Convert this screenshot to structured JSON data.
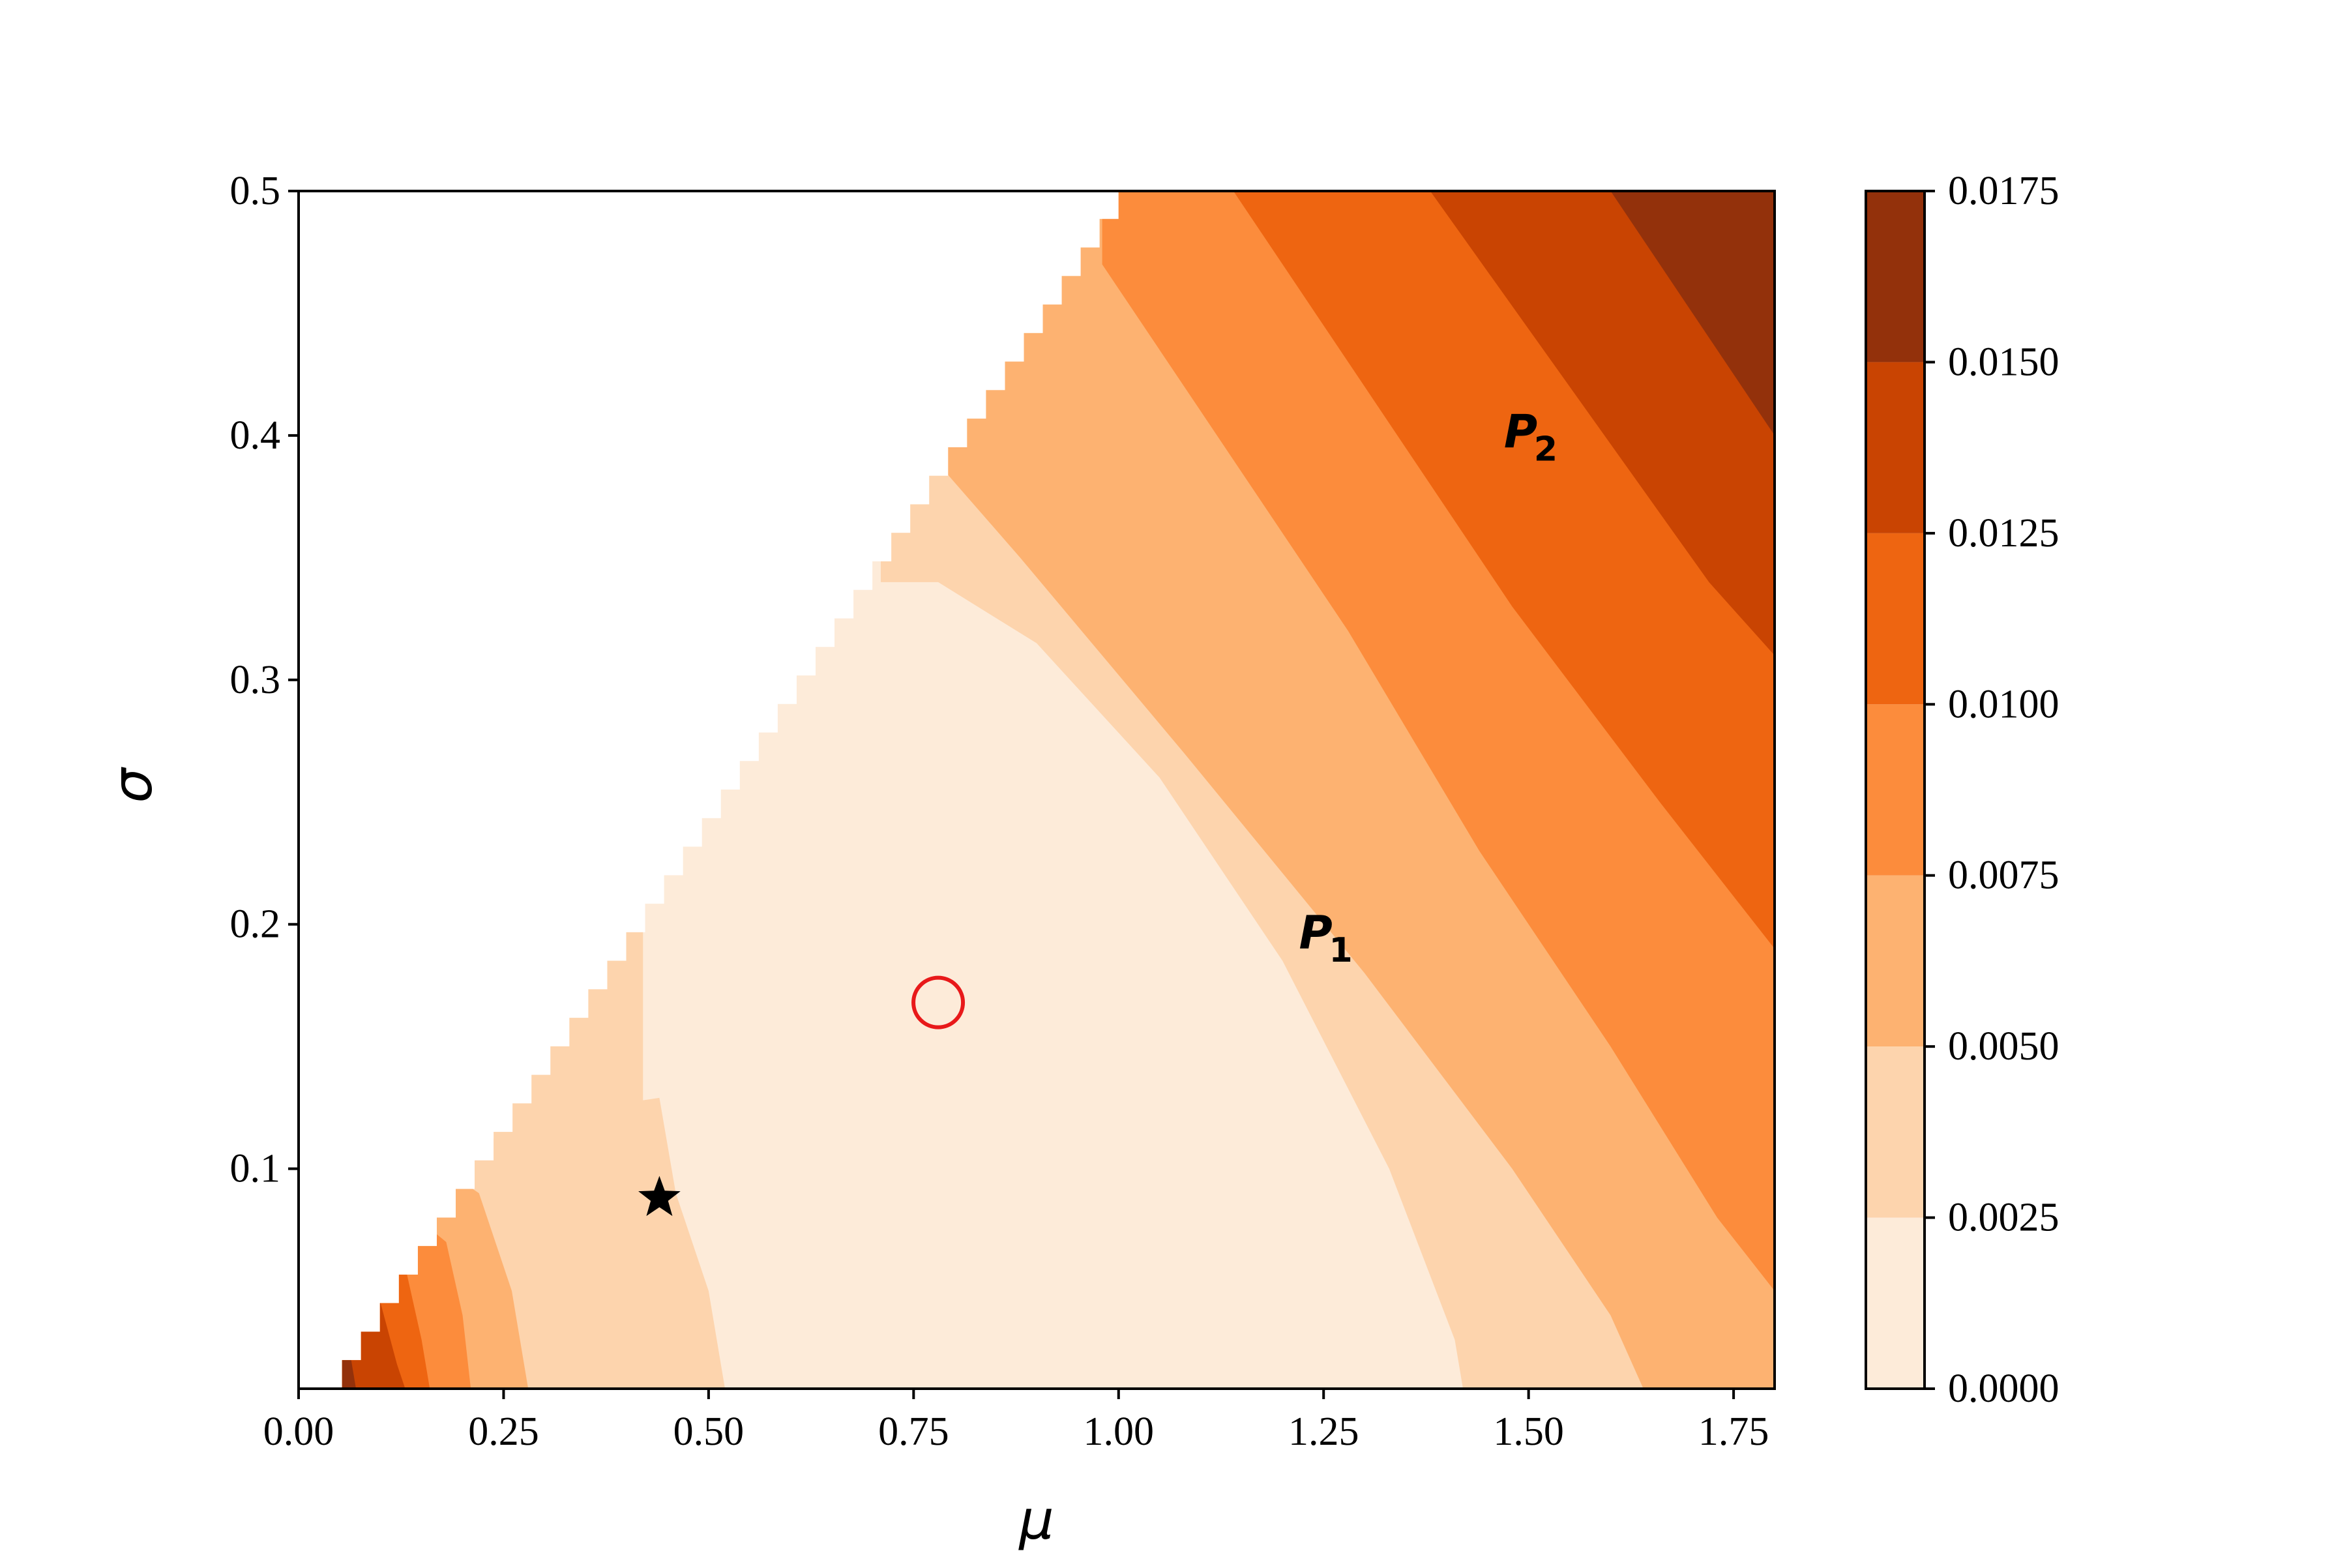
{
  "chart_data": {
    "type": "heatmap",
    "subtype": "filled-contour",
    "title": "",
    "xlabel": "μ",
    "ylabel": "σ",
    "xlim": [
      0.0,
      1.8
    ],
    "ylim": [
      0.01,
      0.5
    ],
    "x_ticks": [
      "0.00",
      "0.25",
      "0.50",
      "0.75",
      "1.00",
      "1.25",
      "1.50",
      "1.75"
    ],
    "x_tick_values": [
      0.0,
      0.25,
      0.5,
      0.75,
      1.0,
      1.25,
      1.5,
      1.75
    ],
    "y_ticks": [
      "0.1",
      "0.2",
      "0.3",
      "0.4",
      "0.5"
    ],
    "y_tick_values": [
      0.1,
      0.2,
      0.3,
      0.4,
      0.5
    ],
    "grid": false,
    "colorbar": {
      "position": "right",
      "levels": [
        0.0,
        0.0025,
        0.005,
        0.0075,
        0.01,
        0.0125,
        0.015,
        0.0175
      ],
      "tick_labels": [
        "0.0000",
        "0.0025",
        "0.0050",
        "0.0075",
        "0.0100",
        "0.0125",
        "0.0150",
        "0.0175"
      ],
      "colors": [
        "#fdebd9",
        "#fdd4ad",
        "#fdb271",
        "#fc8c3c",
        "#ee6511",
        "#c94402",
        "#93310b"
      ]
    },
    "valid_region": "below the line σ ≈ 0.28·μ (white above)",
    "boundaries": [
      {
        "level": 0.0025,
        "points": [
          [
            0.42,
            0.128
          ],
          [
            0.44,
            0.129
          ],
          [
            0.46,
            0.09
          ],
          [
            0.5,
            0.05
          ],
          [
            0.52,
            0.01
          ]
        ]
      },
      {
        "level": 0.0025,
        "points": [
          [
            0.71,
            0.34
          ],
          [
            0.78,
            0.34
          ],
          [
            0.9,
            0.315
          ],
          [
            1.05,
            0.26
          ],
          [
            1.2,
            0.185
          ],
          [
            1.33,
            0.1
          ],
          [
            1.41,
            0.03
          ],
          [
            1.42,
            0.01
          ]
        ]
      },
      {
        "level": 0.005,
        "points": [
          [
            0.6,
            0.4
          ],
          [
            0.75,
            0.4
          ],
          [
            0.88,
            0.35
          ],
          [
            1.08,
            0.27
          ],
          [
            1.3,
            0.18
          ],
          [
            1.48,
            0.1
          ],
          [
            1.6,
            0.04
          ],
          [
            1.64,
            0.01
          ]
        ]
      },
      {
        "level": 0.0075,
        "points": [
          [
            0.98,
            0.47
          ],
          [
            1.1,
            0.41
          ],
          [
            1.28,
            0.32
          ],
          [
            1.44,
            0.23
          ],
          [
            1.6,
            0.15
          ],
          [
            1.73,
            0.08
          ],
          [
            1.8,
            0.05
          ]
        ]
      },
      {
        "level": 0.01,
        "points": [
          [
            1.14,
            0.5
          ],
          [
            1.3,
            0.42
          ],
          [
            1.48,
            0.33
          ],
          [
            1.66,
            0.25
          ],
          [
            1.8,
            0.19
          ]
        ]
      },
      {
        "level": 0.0125,
        "points": [
          [
            1.38,
            0.5
          ],
          [
            1.55,
            0.42
          ],
          [
            1.72,
            0.34
          ],
          [
            1.8,
            0.31
          ]
        ]
      },
      {
        "level": 0.015,
        "points": [
          [
            1.6,
            0.5
          ],
          [
            1.7,
            0.45
          ],
          [
            1.8,
            0.4
          ]
        ]
      }
    ],
    "left_edge_bands": [
      {
        "level": 0.0025,
        "points": [
          [
            0.25,
            0.11
          ],
          [
            0.3,
            0.09
          ],
          [
            0.36,
            0.04
          ],
          [
            0.38,
            0.035
          ],
          [
            0.4,
            0.04
          ],
          [
            0.42,
            0.128
          ]
        ]
      },
      {
        "level": 0.005,
        "points": [
          [
            0.22,
            0.09
          ],
          [
            0.26,
            0.05
          ],
          [
            0.28,
            0.01
          ]
        ]
      },
      {
        "level": 0.0075,
        "points": [
          [
            0.18,
            0.07
          ],
          [
            0.2,
            0.04
          ],
          [
            0.21,
            0.01
          ]
        ]
      },
      {
        "level": 0.01,
        "points": [
          [
            0.13,
            0.06
          ],
          [
            0.15,
            0.03
          ],
          [
            0.16,
            0.01
          ]
        ]
      },
      {
        "level": 0.0125,
        "points": [
          [
            0.1,
            0.045
          ],
          [
            0.12,
            0.02
          ],
          [
            0.13,
            0.01
          ]
        ]
      },
      {
        "level": 0.015,
        "points": [
          [
            0.06,
            0.03
          ],
          [
            0.07,
            0.01
          ]
        ]
      }
    ],
    "annotations": [
      {
        "text": "P",
        "subscript": "1",
        "x": 1.22,
        "y": 0.19
      },
      {
        "text": "P",
        "subscript": "2",
        "x": 1.47,
        "y": 0.395
      }
    ],
    "markers": [
      {
        "type": "star",
        "x": 0.44,
        "y": 0.088,
        "color": "#000000"
      },
      {
        "type": "circle",
        "x": 0.78,
        "y": 0.168,
        "color": "#e8191a",
        "fill": "none"
      }
    ]
  }
}
